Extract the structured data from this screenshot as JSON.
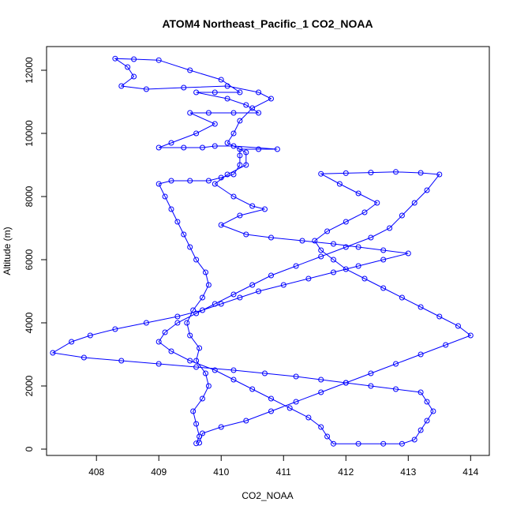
{
  "chart_data": {
    "type": "scatter",
    "title": "ATOM4 Northeast_Pacific_1 CO2_NOAA",
    "xlabel": "CO2_NOAA",
    "ylabel": "Altitude (m)",
    "xlim": [
      407.2,
      414.3
    ],
    "ylim": [
      -200,
      12750
    ],
    "x_ticks": [
      408,
      409,
      410,
      411,
      412,
      413,
      414
    ],
    "y_ticks": [
      0,
      2000,
      4000,
      6000,
      8000,
      10000,
      12000
    ],
    "grid": false,
    "legend": "none",
    "marker": "open-circle",
    "connect_points": true,
    "series": [
      {
        "color": "#0000ff",
        "points": [
          [
            409.6,
            180
          ],
          [
            409.65,
            400
          ],
          [
            409.6,
            800
          ],
          [
            409.55,
            1200
          ],
          [
            409.7,
            1600
          ],
          [
            409.8,
            2000
          ],
          [
            409.75,
            2400
          ],
          [
            409.6,
            2800
          ],
          [
            409.65,
            3200
          ],
          [
            409.5,
            3600
          ],
          [
            409.45,
            4000
          ],
          [
            409.55,
            4400
          ],
          [
            409.7,
            4800
          ],
          [
            409.8,
            5200
          ],
          [
            409.75,
            5600
          ],
          [
            409.6,
            6000
          ],
          [
            409.5,
            6400
          ],
          [
            409.4,
            6800
          ],
          [
            409.3,
            7200
          ],
          [
            409.2,
            7600
          ],
          [
            409.1,
            8000
          ],
          [
            409.0,
            8400
          ],
          [
            409.2,
            8500
          ],
          [
            409.5,
            8500
          ],
          [
            409.8,
            8500
          ],
          [
            410.0,
            8600
          ],
          [
            410.2,
            8700
          ],
          [
            410.3,
            9000
          ],
          [
            410.3,
            9300
          ],
          [
            410.3,
            9500
          ],
          [
            410.6,
            9500
          ],
          [
            410.9,
            9500
          ],
          [
            410.2,
            9600
          ],
          [
            409.9,
            9600
          ],
          [
            409.7,
            9550
          ],
          [
            409.4,
            9550
          ],
          [
            409.0,
            9550
          ],
          [
            409.2,
            9700
          ],
          [
            409.6,
            10000
          ],
          [
            409.9,
            10300
          ],
          [
            409.5,
            10650
          ],
          [
            409.8,
            10650
          ],
          [
            410.2,
            10650
          ],
          [
            410.6,
            10650
          ],
          [
            410.4,
            10900
          ],
          [
            410.1,
            11100
          ],
          [
            409.6,
            11300
          ],
          [
            409.9,
            11300
          ],
          [
            410.3,
            11300
          ],
          [
            410.0,
            11700
          ],
          [
            409.5,
            12000
          ],
          [
            409.0,
            12320
          ],
          [
            408.6,
            12350
          ],
          [
            408.3,
            12370
          ],
          [
            408.5,
            12100
          ],
          [
            408.6,
            11800
          ],
          [
            408.4,
            11500
          ],
          [
            408.8,
            11400
          ],
          [
            409.4,
            11450
          ],
          [
            410.1,
            11500
          ],
          [
            410.6,
            11300
          ],
          [
            410.8,
            11100
          ],
          [
            410.5,
            10800
          ],
          [
            410.3,
            10400
          ],
          [
            410.2,
            10000
          ],
          [
            410.1,
            9700
          ],
          [
            410.4,
            9400
          ],
          [
            410.4,
            9000
          ],
          [
            410.1,
            8700
          ],
          [
            409.9,
            8400
          ],
          [
            410.2,
            8000
          ],
          [
            410.5,
            7700
          ],
          [
            410.7,
            7600
          ],
          [
            410.3,
            7400
          ],
          [
            410.0,
            7100
          ],
          [
            410.4,
            6800
          ],
          [
            410.8,
            6700
          ],
          [
            411.3,
            6600
          ],
          [
            411.8,
            6500
          ],
          [
            412.2,
            6400
          ],
          [
            412.6,
            6300
          ],
          [
            413.0,
            6200
          ],
          [
            412.6,
            6000
          ],
          [
            412.2,
            5800
          ],
          [
            411.8,
            5600
          ],
          [
            411.4,
            5400
          ],
          [
            411.0,
            5200
          ],
          [
            410.6,
            5000
          ],
          [
            410.3,
            4800
          ],
          [
            410.0,
            4600
          ],
          [
            409.7,
            4400
          ],
          [
            409.3,
            4200
          ],
          [
            408.8,
            4000
          ],
          [
            408.3,
            3800
          ],
          [
            407.9,
            3600
          ],
          [
            407.6,
            3400
          ],
          [
            407.3,
            3050
          ],
          [
            407.8,
            2900
          ],
          [
            408.4,
            2800
          ],
          [
            409.0,
            2700
          ],
          [
            409.6,
            2600
          ],
          [
            410.2,
            2500
          ],
          [
            410.7,
            2400
          ],
          [
            411.2,
            2300
          ],
          [
            411.6,
            2200
          ],
          [
            412.0,
            2100
          ],
          [
            412.4,
            2000
          ],
          [
            412.8,
            1900
          ],
          [
            413.2,
            1800
          ],
          [
            413.3,
            1500
          ],
          [
            413.4,
            1200
          ],
          [
            413.3,
            900
          ],
          [
            413.2,
            600
          ],
          [
            413.1,
            300
          ],
          [
            412.9,
            170
          ],
          [
            412.6,
            170
          ],
          [
            412.2,
            170
          ],
          [
            411.8,
            170
          ],
          [
            411.7,
            400
          ],
          [
            411.6,
            700
          ],
          [
            411.4,
            1000
          ],
          [
            411.1,
            1300
          ],
          [
            410.8,
            1600
          ],
          [
            410.5,
            1900
          ],
          [
            410.2,
            2200
          ],
          [
            409.9,
            2500
          ],
          [
            409.5,
            2800
          ],
          [
            409.2,
            3100
          ],
          [
            409.0,
            3400
          ],
          [
            409.1,
            3700
          ],
          [
            409.3,
            4000
          ],
          [
            409.6,
            4300
          ],
          [
            409.9,
            4600
          ],
          [
            410.2,
            4900
          ],
          [
            410.5,
            5200
          ],
          [
            410.8,
            5500
          ],
          [
            411.2,
            5800
          ],
          [
            411.6,
            6100
          ],
          [
            412.0,
            6400
          ],
          [
            412.4,
            6700
          ],
          [
            412.7,
            7000
          ],
          [
            412.9,
            7400
          ],
          [
            413.1,
            7800
          ],
          [
            413.3,
            8200
          ],
          [
            413.5,
            8700
          ],
          [
            413.2,
            8750
          ],
          [
            412.8,
            8780
          ],
          [
            412.4,
            8760
          ],
          [
            412.0,
            8740
          ],
          [
            411.6,
            8720
          ],
          [
            411.9,
            8400
          ],
          [
            412.2,
            8100
          ],
          [
            412.5,
            7800
          ],
          [
            412.3,
            7500
          ],
          [
            412.0,
            7200
          ],
          [
            411.7,
            6900
          ],
          [
            411.5,
            6600
          ],
          [
            411.6,
            6300
          ],
          [
            411.8,
            6000
          ],
          [
            412.0,
            5700
          ],
          [
            412.3,
            5400
          ],
          [
            412.6,
            5100
          ],
          [
            412.9,
            4800
          ],
          [
            413.2,
            4500
          ],
          [
            413.5,
            4200
          ],
          [
            413.8,
            3900
          ],
          [
            414.0,
            3600
          ],
          [
            413.6,
            3300
          ],
          [
            413.2,
            3000
          ],
          [
            412.8,
            2700
          ],
          [
            412.4,
            2400
          ],
          [
            412.0,
            2100
          ],
          [
            411.6,
            1800
          ],
          [
            411.2,
            1500
          ],
          [
            410.8,
            1200
          ],
          [
            410.4,
            900
          ],
          [
            410.0,
            700
          ],
          [
            409.7,
            500
          ],
          [
            409.65,
            200
          ]
        ]
      }
    ]
  }
}
